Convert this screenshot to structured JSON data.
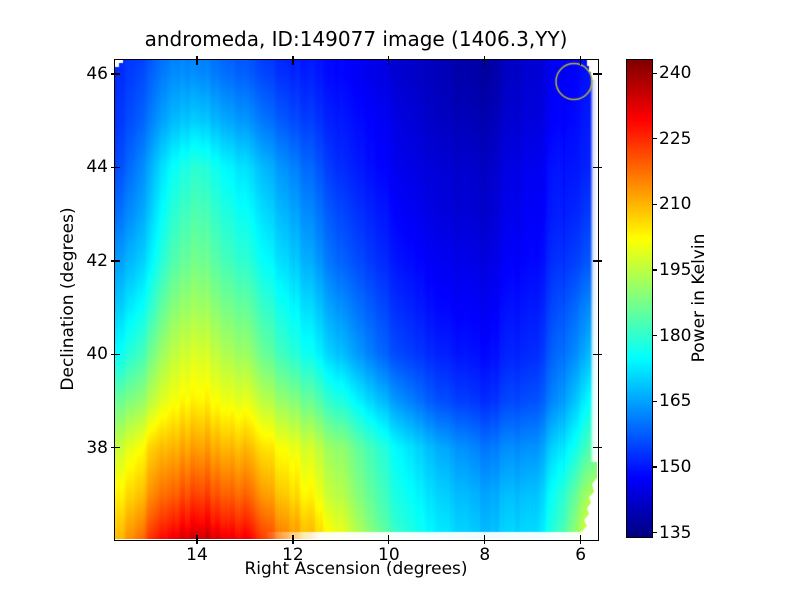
{
  "figure": {
    "title": "andromeda, ID:149077 image (1406.3,YY)",
    "xlabel": "Right Ascension (degrees)",
    "ylabel": "Declination (degrees)",
    "colorbar_label": "Power in Kelvin"
  },
  "chart_data": {
    "type": "heatmap",
    "title": "andromeda, ID:149077 image (1406.3,YY)",
    "xlabel": "Right Ascension (degrees)",
    "ylabel": "Declination (degrees)",
    "colorbar_label": "Power in Kelvin",
    "colormap": "jet",
    "grid_on": false,
    "x_axis": {
      "ticks": [
        14,
        12,
        10,
        8,
        6
      ],
      "range_left": 15.71,
      "range_right": 5.66,
      "reversed": true
    },
    "y_axis": {
      "ticks": [
        46,
        44,
        42,
        40,
        38
      ],
      "range_top": 46.3,
      "range_bottom": 36.05
    },
    "colorbar": {
      "ticks": [
        240,
        225,
        210,
        195,
        180,
        165,
        150,
        135
      ],
      "vmin": 134,
      "vmax": 243
    },
    "grid_ra": [
      15.7,
      15,
      14.5,
      14,
      13,
      12,
      11,
      10,
      9,
      8,
      7,
      6.5,
      6,
      5.65
    ],
    "grid_dec": [
      46.3,
      46,
      45,
      44,
      43,
      42,
      41,
      40,
      39,
      38,
      37,
      36.4,
      36.05
    ],
    "values_kelvin": [
      [
        152,
        156,
        162,
        162,
        157,
        151,
        148,
        144,
        140,
        138,
        143,
        146,
        149,
        150
      ],
      [
        152,
        157,
        163,
        163,
        158,
        152,
        148,
        144,
        140,
        138,
        143,
        146,
        149,
        150
      ],
      [
        153,
        160,
        168,
        170,
        164,
        156,
        150,
        146,
        141,
        140,
        144,
        147,
        150,
        151
      ],
      [
        155,
        165,
        176,
        180,
        172,
        162,
        152,
        147,
        143,
        142,
        146,
        149,
        151,
        152
      ],
      [
        159,
        168,
        180,
        184,
        176,
        166,
        155,
        149,
        144,
        143,
        147,
        150,
        153,
        155
      ],
      [
        164,
        172,
        184,
        188,
        180,
        170,
        158,
        151,
        146,
        145,
        148,
        152,
        156,
        158
      ],
      [
        169,
        178,
        190,
        193,
        186,
        175,
        163,
        154,
        148,
        147,
        150,
        155,
        161,
        164
      ],
      [
        175,
        185,
        196,
        199,
        192,
        180,
        168,
        157,
        151,
        149,
        152,
        158,
        165,
        170
      ],
      [
        186,
        193,
        202,
        204,
        200,
        190,
        178,
        166,
        156,
        153,
        156,
        162,
        172,
        178
      ],
      [
        196,
        205,
        211,
        213,
        210,
        201,
        190,
        177,
        166,
        161,
        163,
        170,
        180,
        186
      ],
      [
        203,
        212,
        220,
        223,
        219,
        207,
        194,
        180,
        170,
        166,
        168,
        176,
        190,
        196
      ],
      [
        207,
        218,
        227,
        230,
        226,
        212,
        198,
        182,
        172,
        168,
        170,
        178,
        194,
        200
      ],
      [
        209,
        222,
        232,
        236,
        231,
        214,
        200,
        184,
        173,
        169,
        171,
        180,
        196,
        202
      ]
    ],
    "annotation_circle": {
      "ra": 6.14,
      "dec": 45.84,
      "radius_px": 18,
      "color": "#b8b832"
    },
    "masked_color": "#ffffff",
    "accent_colors": {
      "spine": "#000000",
      "background": "#ffffff"
    }
  }
}
